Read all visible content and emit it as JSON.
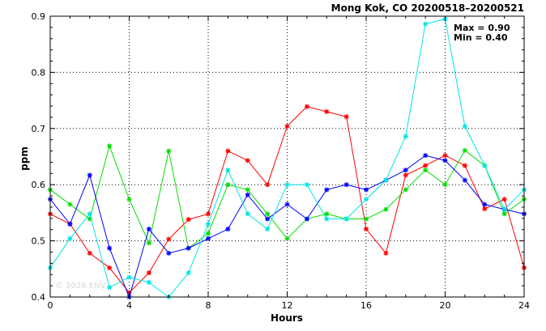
{
  "chart_data": {
    "type": "line",
    "title": "Mong Kok, CO 20200518–20200521",
    "xlabel": "Hours",
    "ylabel": "ppm",
    "xlim": [
      0,
      24
    ],
    "ylim": [
      0.4,
      0.9
    ],
    "xticks": [
      0,
      4,
      8,
      12,
      16,
      20,
      24
    ],
    "yticks": [
      0.4,
      0.5,
      0.6,
      0.7,
      0.8,
      0.9
    ],
    "ytick_labels": [
      "0.4",
      "0.5",
      "0.6",
      "0.7",
      "0.8",
      "0.9"
    ],
    "grid": true,
    "annotations": {
      "max": "Max = 0.90",
      "min": "Min = 0.40"
    },
    "watermark": "© 2026 ENV",
    "x": [
      0,
      1,
      2,
      3,
      4,
      5,
      6,
      7,
      8,
      9,
      10,
      11,
      12,
      13,
      14,
      15,
      16,
      17,
      18,
      19,
      20,
      21,
      22,
      23,
      24
    ],
    "series": [
      {
        "color": "#ff0000",
        "values": [
          0.548,
          0.53,
          0.478,
          0.452,
          0.408,
          0.443,
          0.503,
          0.538,
          0.548,
          0.66,
          0.643,
          0.6,
          0.704,
          0.739,
          0.73,
          0.721,
          0.521,
          0.478,
          0.617,
          0.634,
          0.652,
          0.634,
          0.557,
          0.574,
          0.452
        ]
      },
      {
        "color": "#00e000",
        "values": [
          0.591,
          0.565,
          0.539,
          0.669,
          0.574,
          0.496,
          0.66,
          0.487,
          0.513,
          0.6,
          0.591,
          0.548,
          0.504,
          0.539,
          0.548,
          0.539,
          0.539,
          0.556,
          0.591,
          0.626,
          0.6,
          0.661,
          0.634,
          0.548,
          0.574
        ]
      },
      {
        "color": "#0000ff",
        "values": [
          0.574,
          0.53,
          0.617,
          0.487,
          0.4,
          0.521,
          0.478,
          0.487,
          0.504,
          0.521,
          0.582,
          0.539,
          0.565,
          0.539,
          0.591,
          0.6,
          0.591,
          0.608,
          0.626,
          0.652,
          0.643,
          0.608,
          0.565,
          0.556,
          0.548
        ]
      },
      {
        "color": "#00e5e5",
        "values": [
          0.452,
          0.504,
          0.548,
          0.417,
          0.435,
          0.426,
          0.4,
          0.443,
          0.53,
          0.626,
          0.548,
          0.521,
          0.6,
          0.6,
          0.539,
          0.539,
          0.574,
          0.608,
          0.686,
          0.886,
          0.895,
          0.704,
          0.634,
          0.556,
          0.591
        ]
      }
    ]
  }
}
